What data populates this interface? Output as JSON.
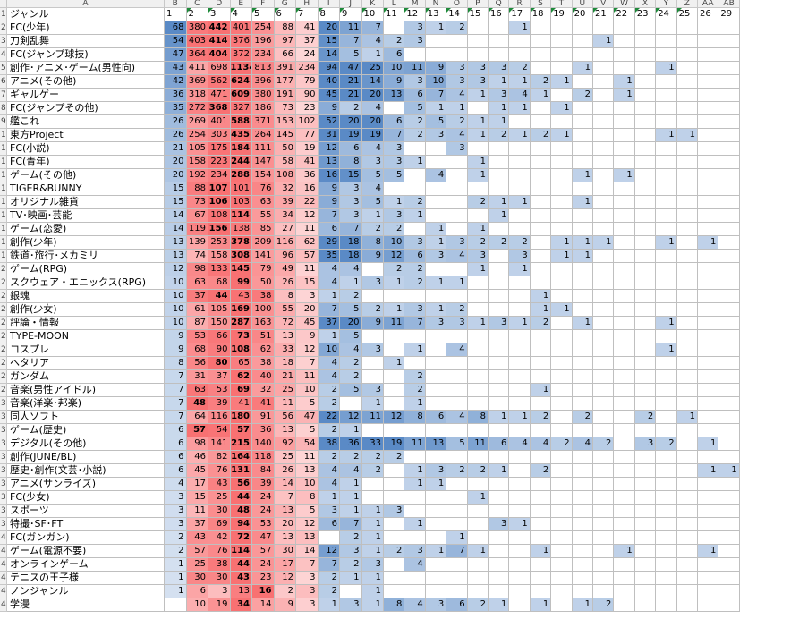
{
  "col_letters": [
    "A",
    "B",
    "C",
    "D",
    "E",
    "F",
    "G",
    "H",
    "I",
    "J",
    "K",
    "L",
    "M",
    "N",
    "O",
    "P",
    "Q",
    "R",
    "S",
    "T",
    "U",
    "V",
    "W",
    "X",
    "Y",
    "Z",
    "AA",
    "AB"
  ],
  "header_row": [
    "ジャンル",
    "1",
    "2",
    "3",
    "4",
    "5",
    "6",
    "7",
    "8",
    "9",
    "10",
    "11",
    "12",
    "13",
    "14",
    "15",
    "16",
    "17",
    "18",
    "19",
    "20",
    "21",
    "22",
    "23",
    "24",
    "25",
    "26",
    "29"
  ],
  "colors": {
    "red": "#f8696b",
    "blue": "#5a8ac6",
    "white": "#ffffff",
    "triangle": "#1e8a3a"
  },
  "rows": [
    {
      "n": "2",
      "genre": "FC(少年)",
      "v": [
        68,
        380,
        442,
        401,
        254,
        88,
        41,
        20,
        11,
        7,
        null,
        3,
        1,
        2,
        null,
        null,
        1,
        null,
        null,
        null,
        null,
        null,
        null,
        null,
        null,
        null,
        null
      ]
    },
    {
      "n": "3",
      "genre": "刀剣乱舞",
      "v": [
        54,
        403,
        414,
        376,
        196,
        97,
        37,
        15,
        7,
        4,
        2,
        3,
        null,
        null,
        null,
        null,
        null,
        null,
        null,
        null,
        1,
        null,
        null,
        null,
        null,
        null,
        null
      ]
    },
    {
      "n": "4",
      "genre": "FC(ジャンプ球技)",
      "v": [
        47,
        364,
        404,
        372,
        234,
        66,
        24,
        14,
        5,
        1,
        6,
        null,
        null,
        null,
        null,
        null,
        null,
        null,
        null,
        null,
        null,
        null,
        null,
        null,
        null,
        null,
        null
      ]
    },
    {
      "n": "5",
      "genre": "創作･アニメ･ゲーム(男性向)",
      "v": [
        43,
        411,
        698,
        1134,
        813,
        391,
        234,
        94,
        47,
        25,
        10,
        11,
        9,
        3,
        3,
        3,
        2,
        null,
        null,
        1,
        null,
        null,
        null,
        1,
        null,
        null,
        null
      ]
    },
    {
      "n": "6",
      "genre": "アニメ(その他)",
      "v": [
        42,
        369,
        562,
        624,
        396,
        177,
        79,
        40,
        21,
        14,
        9,
        3,
        10,
        3,
        3,
        1,
        1,
        2,
        1,
        null,
        null,
        1,
        null,
        null,
        null,
        null,
        null
      ]
    },
    {
      "n": "7",
      "genre": "ギャルゲー",
      "v": [
        36,
        318,
        471,
        609,
        380,
        191,
        90,
        45,
        21,
        20,
        13,
        6,
        7,
        4,
        1,
        3,
        4,
        1,
        null,
        2,
        null,
        1,
        null,
        null,
        null,
        null,
        null
      ]
    },
    {
      "n": "8",
      "genre": "FC(ジャンプその他)",
      "v": [
        35,
        272,
        368,
        327,
        186,
        73,
        23,
        9,
        2,
        4,
        null,
        5,
        1,
        1,
        null,
        1,
        1,
        null,
        1,
        null,
        null,
        null,
        null,
        null,
        null,
        null,
        null
      ]
    },
    {
      "n": "9",
      "genre": "艦これ",
      "v": [
        26,
        269,
        401,
        588,
        371,
        153,
        102,
        52,
        20,
        20,
        6,
        2,
        5,
        2,
        1,
        1,
        null,
        null,
        null,
        null,
        null,
        null,
        null,
        null,
        null,
        null,
        null
      ]
    },
    {
      "n": "10",
      "genre": "東方Project",
      "v": [
        26,
        254,
        303,
        435,
        264,
        145,
        77,
        31,
        19,
        19,
        7,
        2,
        3,
        4,
        1,
        2,
        1,
        2,
        1,
        null,
        null,
        null,
        null,
        1,
        1,
        null,
        null
      ]
    },
    {
      "n": "11",
      "genre": "FC(小説)",
      "v": [
        21,
        105,
        175,
        184,
        111,
        50,
        19,
        12,
        6,
        4,
        3,
        null,
        null,
        3,
        null,
        null,
        null,
        null,
        null,
        null,
        null,
        null,
        null,
        null,
        null,
        null,
        null
      ]
    },
    {
      "n": "12",
      "genre": "FC(青年)",
      "v": [
        20,
        158,
        223,
        244,
        147,
        58,
        41,
        13,
        8,
        3,
        3,
        1,
        null,
        null,
        1,
        null,
        null,
        null,
        null,
        null,
        null,
        null,
        null,
        null,
        null,
        null,
        null
      ]
    },
    {
      "n": "13",
      "genre": "ゲーム(その他)",
      "v": [
        20,
        192,
        234,
        288,
        154,
        108,
        36,
        16,
        15,
        5,
        5,
        null,
        4,
        null,
        1,
        null,
        null,
        null,
        null,
        1,
        null,
        1,
        null,
        null,
        null,
        null,
        null
      ]
    },
    {
      "n": "14",
      "genre": "TIGER&BUNNY",
      "v": [
        15,
        88,
        107,
        101,
        76,
        32,
        16,
        9,
        3,
        4,
        null,
        null,
        null,
        null,
        null,
        null,
        null,
        null,
        null,
        null,
        null,
        null,
        null,
        null,
        null,
        null,
        null
      ]
    },
    {
      "n": "15",
      "genre": "オリジナル雑貨",
      "v": [
        15,
        73,
        106,
        103,
        63,
        39,
        22,
        9,
        3,
        5,
        1,
        2,
        null,
        null,
        2,
        1,
        1,
        null,
        null,
        1,
        null,
        null,
        null,
        null,
        null,
        null,
        null
      ]
    },
    {
      "n": "16",
      "genre": "TV･映画･芸能",
      "v": [
        14,
        67,
        108,
        114,
        55,
        34,
        12,
        7,
        3,
        1,
        3,
        1,
        null,
        null,
        null,
        1,
        null,
        null,
        null,
        null,
        null,
        null,
        null,
        null,
        null,
        null,
        null
      ]
    },
    {
      "n": "17",
      "genre": "ゲーム(恋愛)",
      "v": [
        14,
        119,
        156,
        138,
        85,
        27,
        11,
        6,
        7,
        2,
        2,
        null,
        1,
        null,
        1,
        null,
        null,
        null,
        null,
        null,
        null,
        null,
        null,
        null,
        null,
        null,
        null
      ]
    },
    {
      "n": "18",
      "genre": "創作(少年)",
      "v": [
        13,
        139,
        253,
        378,
        209,
        116,
        62,
        29,
        18,
        8,
        10,
        3,
        1,
        3,
        2,
        2,
        2,
        null,
        1,
        1,
        1,
        null,
        null,
        1,
        null,
        1,
        null
      ]
    },
    {
      "n": "19",
      "genre": "鉄道･旅行･メカミリ",
      "v": [
        13,
        74,
        158,
        308,
        141,
        96,
        57,
        35,
        18,
        9,
        12,
        6,
        3,
        4,
        3,
        null,
        3,
        null,
        1,
        1,
        null,
        null,
        null,
        null,
        null,
        null,
        null
      ]
    },
    {
      "n": "20",
      "genre": "ゲーム(RPG)",
      "v": [
        12,
        98,
        133,
        145,
        79,
        49,
        11,
        4,
        4,
        null,
        2,
        2,
        null,
        null,
        1,
        null,
        1,
        null,
        null,
        null,
        null,
        null,
        null,
        null,
        null,
        null,
        null
      ]
    },
    {
      "n": "21",
      "genre": "スクウェア・エニックス(RPG)",
      "v": [
        10,
        63,
        68,
        99,
        50,
        26,
        15,
        4,
        1,
        3,
        1,
        2,
        1,
        1,
        null,
        null,
        null,
        null,
        null,
        null,
        null,
        null,
        null,
        null,
        null,
        null,
        null
      ]
    },
    {
      "n": "22",
      "genre": "銀魂",
      "v": [
        10,
        37,
        44,
        43,
        38,
        8,
        3,
        1,
        2,
        null,
        null,
        null,
        null,
        null,
        null,
        null,
        null,
        1,
        null,
        null,
        null,
        null,
        null,
        null,
        null,
        null,
        null
      ]
    },
    {
      "n": "23",
      "genre": "創作(少女)",
      "v": [
        10,
        61,
        105,
        169,
        100,
        55,
        20,
        7,
        5,
        2,
        1,
        3,
        1,
        2,
        null,
        null,
        null,
        1,
        1,
        null,
        null,
        null,
        null,
        null,
        null,
        null,
        null
      ]
    },
    {
      "n": "24",
      "genre": "評論・情報",
      "v": [
        10,
        87,
        150,
        287,
        163,
        72,
        45,
        37,
        20,
        9,
        11,
        7,
        3,
        3,
        1,
        3,
        1,
        2,
        null,
        1,
        null,
        null,
        null,
        1,
        null,
        null,
        null
      ]
    },
    {
      "n": "25",
      "genre": "TYPE-MOON",
      "v": [
        9,
        53,
        66,
        73,
        51,
        13,
        9,
        1,
        5,
        null,
        null,
        null,
        null,
        null,
        null,
        null,
        null,
        null,
        null,
        null,
        null,
        null,
        null,
        null,
        null,
        null,
        null
      ]
    },
    {
      "n": "26",
      "genre": "コスプレ",
      "v": [
        9,
        68,
        90,
        108,
        62,
        33,
        12,
        10,
        4,
        3,
        null,
        1,
        null,
        4,
        null,
        null,
        null,
        null,
        null,
        null,
        null,
        null,
        null,
        1,
        null,
        null,
        null
      ]
    },
    {
      "n": "27",
      "genre": "ヘタリア",
      "v": [
        8,
        56,
        80,
        65,
        38,
        18,
        7,
        4,
        2,
        null,
        1,
        null,
        null,
        null,
        null,
        null,
        null,
        null,
        null,
        null,
        null,
        null,
        null,
        null,
        null,
        null,
        null
      ]
    },
    {
      "n": "28",
      "genre": "ガンダム",
      "v": [
        7,
        31,
        37,
        62,
        40,
        21,
        11,
        4,
        2,
        null,
        null,
        2,
        null,
        null,
        null,
        null,
        null,
        null,
        null,
        null,
        null,
        null,
        null,
        null,
        null,
        null,
        null
      ]
    },
    {
      "n": "29",
      "genre": "音楽(男性アイドル)",
      "v": [
        7,
        63,
        53,
        69,
        32,
        25,
        10,
        2,
        5,
        3,
        null,
        2,
        null,
        null,
        null,
        null,
        null,
        1,
        null,
        null,
        null,
        null,
        null,
        null,
        null,
        null,
        null
      ]
    },
    {
      "n": "30",
      "genre": "音楽(洋楽･邦楽)",
      "v": [
        7,
        48,
        39,
        41,
        41,
        11,
        5,
        2,
        null,
        1,
        null,
        1,
        null,
        null,
        null,
        null,
        null,
        null,
        null,
        null,
        null,
        null,
        null,
        null,
        null,
        null,
        null
      ]
    },
    {
      "n": "31",
      "genre": "同人ソフト",
      "v": [
        7,
        64,
        116,
        180,
        91,
        56,
        47,
        22,
        12,
        11,
        12,
        8,
        6,
        4,
        8,
        1,
        1,
        2,
        null,
        2,
        null,
        null,
        2,
        null,
        1,
        null,
        null
      ]
    },
    {
      "n": "32",
      "genre": "ゲーム(歴史)",
      "v": [
        6,
        57,
        54,
        57,
        36,
        13,
        5,
        2,
        1,
        null,
        null,
        null,
        null,
        null,
        null,
        null,
        null,
        null,
        null,
        null,
        null,
        null,
        null,
        null,
        null,
        null,
        null
      ]
    },
    {
      "n": "33",
      "genre": "デジタル(その他)",
      "v": [
        6,
        98,
        141,
        215,
        140,
        92,
        54,
        38,
        36,
        33,
        19,
        11,
        13,
        5,
        11,
        6,
        4,
        4,
        2,
        4,
        2,
        null,
        3,
        2,
        null,
        1,
        null
      ]
    },
    {
      "n": "34",
      "genre": "創作(JUNE/BL)",
      "v": [
        6,
        46,
        82,
        164,
        118,
        25,
        11,
        2,
        2,
        2,
        2,
        null,
        null,
        null,
        null,
        null,
        null,
        null,
        null,
        null,
        null,
        null,
        null,
        null,
        null,
        null,
        null
      ]
    },
    {
      "n": "35",
      "genre": "歴史･創作(文芸･小説)",
      "v": [
        6,
        45,
        76,
        131,
        84,
        26,
        13,
        4,
        4,
        2,
        null,
        1,
        3,
        2,
        2,
        1,
        null,
        2,
        null,
        null,
        null,
        null,
        null,
        null,
        null,
        1,
        1
      ]
    },
    {
      "n": "36",
      "genre": "アニメ(サンライズ)",
      "v": [
        4,
        17,
        43,
        56,
        39,
        14,
        10,
        4,
        1,
        null,
        null,
        1,
        1,
        null,
        null,
        null,
        null,
        null,
        null,
        null,
        null,
        null,
        null,
        null,
        null,
        null,
        null
      ]
    },
    {
      "n": "37",
      "genre": "FC(少女)",
      "v": [
        3,
        15,
        25,
        44,
        24,
        7,
        8,
        1,
        1,
        null,
        null,
        null,
        null,
        null,
        1,
        null,
        null,
        null,
        null,
        null,
        null,
        null,
        null,
        null,
        null,
        null,
        null
      ]
    },
    {
      "n": "38",
      "genre": "スポーツ",
      "v": [
        3,
        11,
        30,
        48,
        24,
        13,
        5,
        3,
        1,
        1,
        3,
        null,
        null,
        null,
        null,
        null,
        null,
        null,
        null,
        null,
        null,
        null,
        null,
        null,
        null,
        null,
        null
      ]
    },
    {
      "n": "39",
      "genre": "特撮･SF･FT",
      "v": [
        3,
        37,
        69,
        94,
        53,
        20,
        12,
        6,
        7,
        1,
        null,
        1,
        null,
        null,
        null,
        3,
        1,
        null,
        null,
        null,
        null,
        null,
        null,
        null,
        null,
        null,
        null
      ]
    },
    {
      "n": "40",
      "genre": "FC(ガンガン)",
      "v": [
        2,
        43,
        42,
        72,
        47,
        13,
        13,
        null,
        2,
        1,
        null,
        null,
        null,
        1,
        null,
        null,
        null,
        null,
        null,
        null,
        null,
        null,
        null,
        null,
        null,
        null,
        null
      ]
    },
    {
      "n": "41",
      "genre": "ゲーム(電源不要)",
      "v": [
        2,
        57,
        76,
        114,
        57,
        30,
        14,
        12,
        3,
        1,
        2,
        3,
        1,
        7,
        1,
        null,
        null,
        1,
        null,
        null,
        null,
        1,
        null,
        null,
        null,
        1,
        null
      ]
    },
    {
      "n": "42",
      "genre": "オンラインゲーム",
      "v": [
        1,
        25,
        38,
        44,
        24,
        17,
        7,
        7,
        2,
        3,
        null,
        4,
        null,
        null,
        null,
        null,
        null,
        null,
        null,
        null,
        null,
        null,
        null,
        null,
        null,
        null,
        null
      ]
    },
    {
      "n": "43",
      "genre": "テニスの王子様",
      "v": [
        1,
        30,
        30,
        43,
        23,
        12,
        3,
        2,
        1,
        1,
        null,
        null,
        null,
        null,
        null,
        null,
        null,
        null,
        null,
        null,
        null,
        null,
        null,
        null,
        null,
        null,
        null
      ]
    },
    {
      "n": "44",
      "genre": "ノンジャンル",
      "v": [
        1,
        6,
        3,
        13,
        16,
        2,
        3,
        2,
        null,
        1,
        null,
        null,
        null,
        null,
        null,
        null,
        null,
        null,
        null,
        null,
        null,
        null,
        null,
        null,
        null,
        null,
        null
      ]
    },
    {
      "n": "45",
      "genre": "学漫",
      "v": [
        null,
        10,
        19,
        34,
        14,
        9,
        3,
        1,
        3,
        1,
        8,
        4,
        3,
        6,
        2,
        1,
        null,
        1,
        null,
        1,
        2,
        null,
        null,
        null,
        null,
        null,
        null
      ]
    }
  ]
}
